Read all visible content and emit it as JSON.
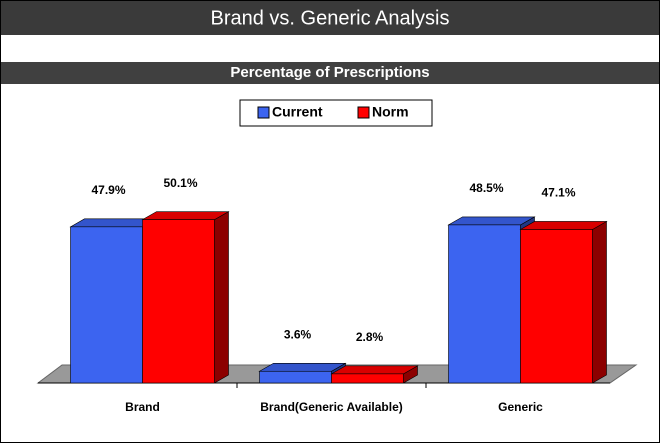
{
  "header": {
    "title": "Brand vs. Generic Analysis"
  },
  "chart_data": {
    "type": "bar3d",
    "title": "Percentage of Prescriptions",
    "categories": [
      "Brand",
      "Brand(Generic Available)",
      "Generic"
    ],
    "series": [
      {
        "name": "Current",
        "color": "#3c64f0",
        "values": [
          47.9,
          3.6,
          48.5
        ],
        "value_labels": [
          "47.9%",
          "3.6%",
          "48.5%"
        ]
      },
      {
        "name": "Norm",
        "color": "#ff0000",
        "values": [
          50.1,
          2.8,
          47.1
        ],
        "value_labels": [
          "50.1%",
          "2.8%",
          "47.1%"
        ]
      }
    ],
    "ylim": [
      0,
      100
    ],
    "legend": "top"
  }
}
